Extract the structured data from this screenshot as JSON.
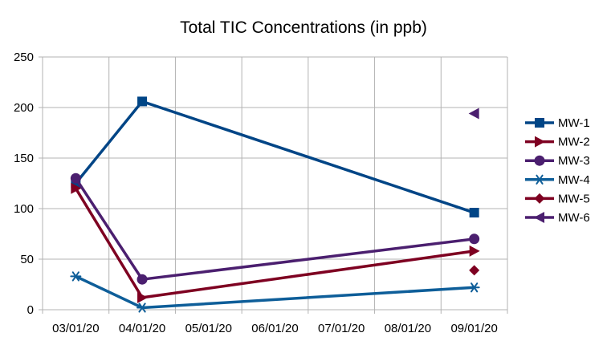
{
  "chart_data": {
    "type": "line",
    "title": "Total TIC Concentrations (in ppb)",
    "xlabel": "",
    "ylabel": "",
    "categories": [
      "03/01/20",
      "04/01/20",
      "05/01/20",
      "06/01/20",
      "07/01/20",
      "08/01/20",
      "09/01/20"
    ],
    "ylim": [
      0,
      250
    ],
    "yticks": [
      0,
      50,
      100,
      150,
      200,
      250
    ],
    "grid": true,
    "legend": "right",
    "series": [
      {
        "name": "MW-1",
        "color": "#004586",
        "marker": "square",
        "values": [
          125,
          206,
          null,
          null,
          null,
          null,
          96
        ]
      },
      {
        "name": "MW-2",
        "color": "#7e0021",
        "marker": "triangle-right",
        "values": [
          120,
          12,
          null,
          null,
          null,
          null,
          58
        ]
      },
      {
        "name": "MW-3",
        "color": "#4b1f6f",
        "marker": "circle",
        "values": [
          130,
          30,
          null,
          null,
          null,
          null,
          70
        ]
      },
      {
        "name": "MW-4",
        "color": "#0e5e99",
        "marker": "asterisk",
        "values": [
          33,
          2,
          null,
          null,
          null,
          null,
          22
        ]
      },
      {
        "name": "MW-5",
        "color": "#7e0021",
        "marker": "diamond",
        "values": [
          null,
          null,
          null,
          null,
          null,
          null,
          39
        ]
      },
      {
        "name": "MW-6",
        "color": "#4b1f6f",
        "marker": "triangle-left",
        "values": [
          null,
          null,
          null,
          null,
          null,
          null,
          194
        ]
      }
    ]
  }
}
